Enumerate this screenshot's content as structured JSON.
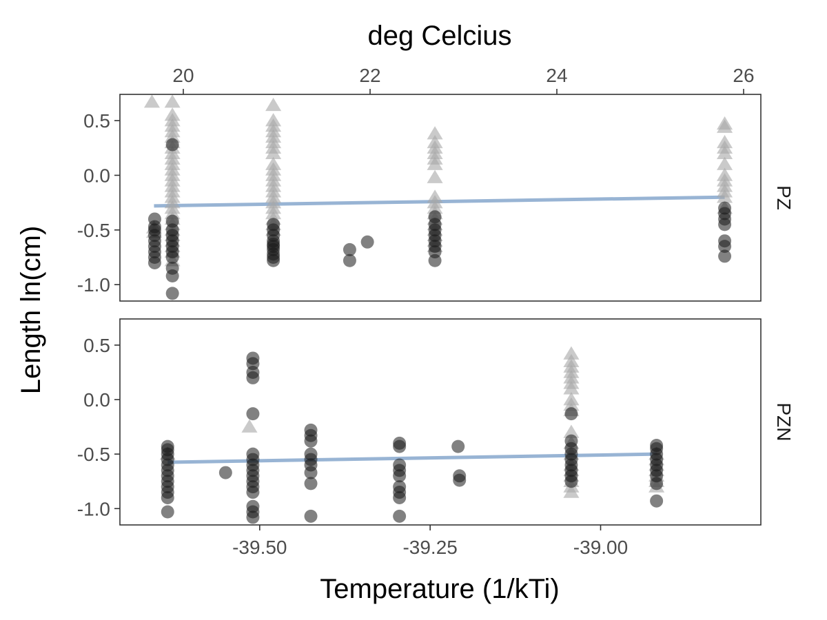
{
  "chart_data": {
    "type": "scatter",
    "title": "",
    "xlabel": "Temperature (1/kTi)",
    "ylabel": "Length ln(cm)",
    "secondary_xlabel": "deg Celcius",
    "xlim": [
      -39.705,
      -38.765
    ],
    "ylim": [
      -1.15,
      0.74
    ],
    "x_ticks": [
      -39.5,
      -39.25,
      -39.0
    ],
    "x_tick_labels": [
      "-39.50",
      "-39.25",
      "-39.00"
    ],
    "secondary_x_ticks": [
      20,
      22,
      24,
      26
    ],
    "secondary_x_tick_labels": [
      "20",
      "22",
      "24",
      "26"
    ],
    "y_ticks": [
      0.5,
      0.0,
      -0.5,
      -1.0
    ],
    "y_tick_labels": [
      "0.5",
      "0.0",
      "-0.5",
      "-1.0"
    ],
    "grid": false,
    "legend": "none",
    "colors": {
      "circle": "#1a1a1a",
      "triangle": "#a6a6a6",
      "fit_line": "#8daccf",
      "panel_border": "#333333",
      "tick_text": "#4d4d4d"
    },
    "facets": [
      {
        "label": "PZ",
        "fit_line": {
          "x": [
            -39.655,
            -38.818
          ],
          "y": [
            -0.28,
            -0.2
          ]
        },
        "circle_series": [
          {
            "x": -39.654,
            "y": [
              -0.4,
              -0.47,
              -0.5,
              -0.55,
              -0.6,
              -0.65,
              -0.7,
              -0.75,
              -0.8
            ]
          },
          {
            "x": -39.628,
            "y": [
              0.28,
              -0.42,
              -0.5,
              -0.55,
              -0.6,
              -0.65,
              -0.7,
              -0.75,
              -0.85,
              -0.92,
              -1.08
            ]
          },
          {
            "x": -39.48,
            "y": [
              -0.45,
              -0.5,
              -0.55,
              -0.6,
              -0.63,
              -0.65,
              -0.68,
              -0.72,
              -0.75,
              -0.78
            ]
          },
          {
            "x": -39.368,
            "y": [
              -0.68,
              -0.78
            ]
          },
          {
            "x": -39.342,
            "y": [
              -0.61
            ]
          },
          {
            "x": -39.243,
            "y": [
              -0.38,
              -0.45,
              -0.5,
              -0.55,
              -0.6,
              -0.65,
              -0.7,
              -0.78
            ]
          },
          {
            "x": -38.818,
            "y": [
              -0.3,
              -0.35,
              -0.4,
              -0.45,
              -0.6,
              -0.65,
              -0.74
            ]
          }
        ],
        "triangle_series": [
          {
            "x": -39.658,
            "y": [
              0.67
            ]
          },
          {
            "x": -39.655,
            "y": [
              -0.48,
              -0.52
            ]
          },
          {
            "x": -39.628,
            "y": [
              0.67,
              0.55,
              0.5,
              0.45,
              0.4,
              0.35,
              0.3,
              0.25,
              0.2,
              0.15,
              0.1,
              0.05,
              0.0,
              -0.05,
              -0.1,
              -0.15,
              -0.2,
              -0.25,
              -0.3,
              -0.35,
              -0.4,
              -0.45,
              -0.5,
              -0.55,
              -0.6,
              -0.65,
              -0.7,
              -0.78
            ]
          },
          {
            "x": -39.48,
            "y": [
              0.64,
              0.5,
              0.45,
              0.4,
              0.35,
              0.3,
              0.25,
              0.2,
              0.1,
              0.05,
              0.0,
              -0.05,
              -0.1,
              -0.15,
              -0.2,
              -0.25,
              -0.3,
              -0.35,
              -0.4,
              -0.45,
              -0.5
            ]
          },
          {
            "x": -39.243,
            "y": [
              0.38,
              0.3,
              0.25,
              0.2,
              0.15,
              0.1,
              -0.02,
              -0.2,
              -0.25,
              -0.3,
              -0.35,
              -0.4,
              -0.45,
              -0.5,
              -0.55,
              -0.6,
              -0.65
            ]
          },
          {
            "x": -38.818,
            "y": [
              0.47,
              0.44,
              0.3,
              0.25,
              0.2,
              0.1,
              0.0,
              -0.05,
              -0.1,
              -0.15,
              -0.2,
              -0.3
            ]
          }
        ]
      },
      {
        "label": "PZN",
        "fit_line": {
          "x": [
            -39.635,
            -38.918
          ],
          "y": [
            -0.575,
            -0.5
          ]
        },
        "circle_series": [
          {
            "x": -39.635,
            "y": [
              -0.43,
              -0.46,
              -0.5,
              -0.55,
              -0.6,
              -0.65,
              -0.7,
              -0.75,
              -0.8,
              -0.85,
              -0.9,
              -1.03
            ]
          },
          {
            "x": -39.55,
            "y": [
              -0.67
            ]
          },
          {
            "x": -39.51,
            "y": [
              0.38,
              0.33,
              0.25,
              0.2,
              -0.13,
              -0.5,
              -0.55,
              -0.6,
              -0.65,
              -0.7,
              -0.75,
              -0.8,
              -0.85,
              -0.98,
              -1.03,
              -1.08
            ]
          },
          {
            "x": -39.425,
            "y": [
              -0.28,
              -0.33,
              -0.38,
              -0.5,
              -0.55,
              -0.6,
              -0.67,
              -0.77,
              -1.07
            ]
          },
          {
            "x": -39.295,
            "y": [
              -0.4,
              -0.43,
              -0.6,
              -0.65,
              -0.7,
              -0.8,
              -0.85,
              -0.9,
              -1.07
            ]
          },
          {
            "x": -39.209,
            "y": [
              -0.43
            ]
          },
          {
            "x": -39.207,
            "y": [
              -0.7,
              -0.74
            ]
          },
          {
            "x": -39.043,
            "y": [
              -0.13,
              -0.38,
              -0.45,
              -0.5,
              -0.55,
              -0.6,
              -0.65,
              -0.7,
              -0.75
            ]
          },
          {
            "x": -38.918,
            "y": [
              -0.42,
              -0.45,
              -0.5,
              -0.55,
              -0.6,
              -0.65,
              -0.7,
              -0.77,
              -0.93
            ]
          }
        ],
        "triangle_series": [
          {
            "x": -39.635,
            "y": [
              -0.5
            ]
          },
          {
            "x": -39.515,
            "y": [
              -0.25
            ]
          },
          {
            "x": -39.043,
            "y": [
              0.42,
              0.35,
              0.3,
              0.25,
              0.2,
              0.15,
              0.1,
              0.0,
              -0.05,
              -0.1,
              -0.3,
              -0.4,
              -0.5,
              -0.6,
              -0.65,
              -0.7,
              -0.75,
              -0.8,
              -0.85
            ]
          },
          {
            "x": -38.918,
            "y": [
              -0.5,
              -0.55,
              -0.6,
              -0.65,
              -0.7,
              -0.75,
              -0.8
            ]
          }
        ]
      }
    ]
  }
}
